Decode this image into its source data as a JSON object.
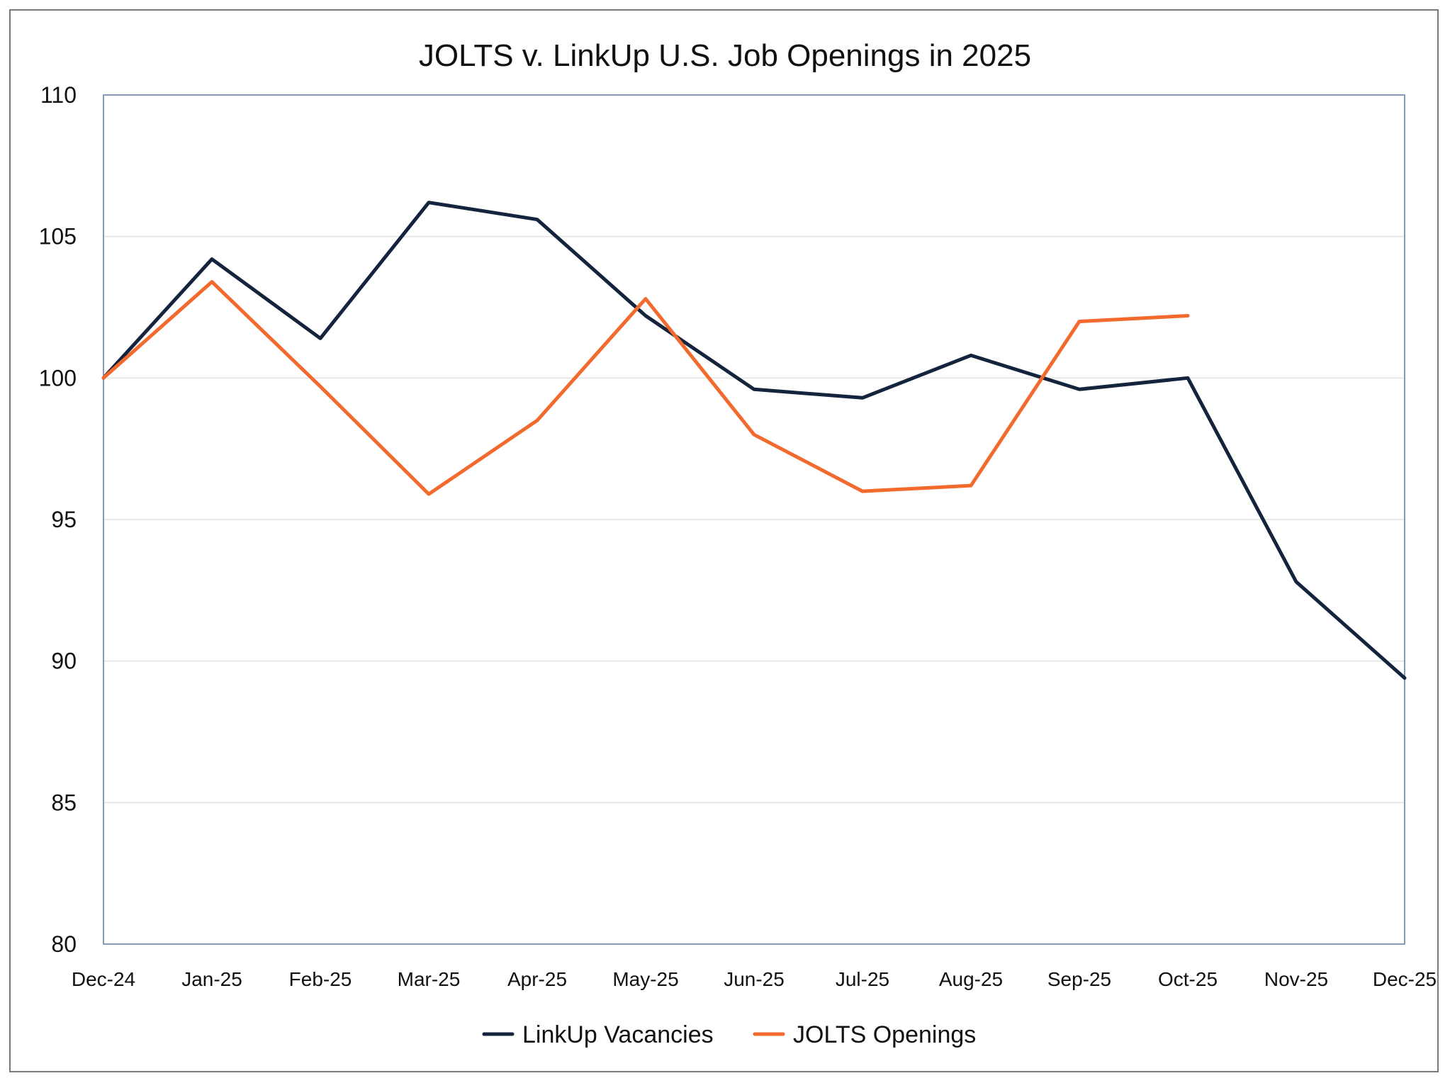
{
  "chart_data": {
    "type": "line",
    "title": "JOLTS v. LinkUp U.S. Job Openings in 2025",
    "xlabel": "",
    "ylabel": "",
    "categories": [
      "Dec-24",
      "Jan-25",
      "Feb-25",
      "Mar-25",
      "Apr-25",
      "May-25",
      "Jun-25",
      "Jul-25",
      "Aug-25",
      "Sep-25",
      "Oct-25",
      "Nov-25",
      "Dec-25"
    ],
    "ylim": [
      80,
      110
    ],
    "yticks": [
      80,
      85,
      90,
      95,
      100,
      105,
      110
    ],
    "grid": true,
    "legend_position": "bottom-center",
    "series": [
      {
        "name": "LinkUp Vacancies",
        "color": "#14243d",
        "values": [
          100,
          104.2,
          101.4,
          106.2,
          105.6,
          102.2,
          99.6,
          99.3,
          100.8,
          99.6,
          100.0,
          92.8,
          89.4
        ]
      },
      {
        "name": "JOLTS Openings",
        "color": "#f26a2e",
        "values": [
          100,
          103.4,
          99.7,
          95.9,
          98.5,
          102.8,
          98.0,
          96.0,
          96.2,
          102.0,
          102.2,
          null,
          null
        ]
      }
    ]
  }
}
